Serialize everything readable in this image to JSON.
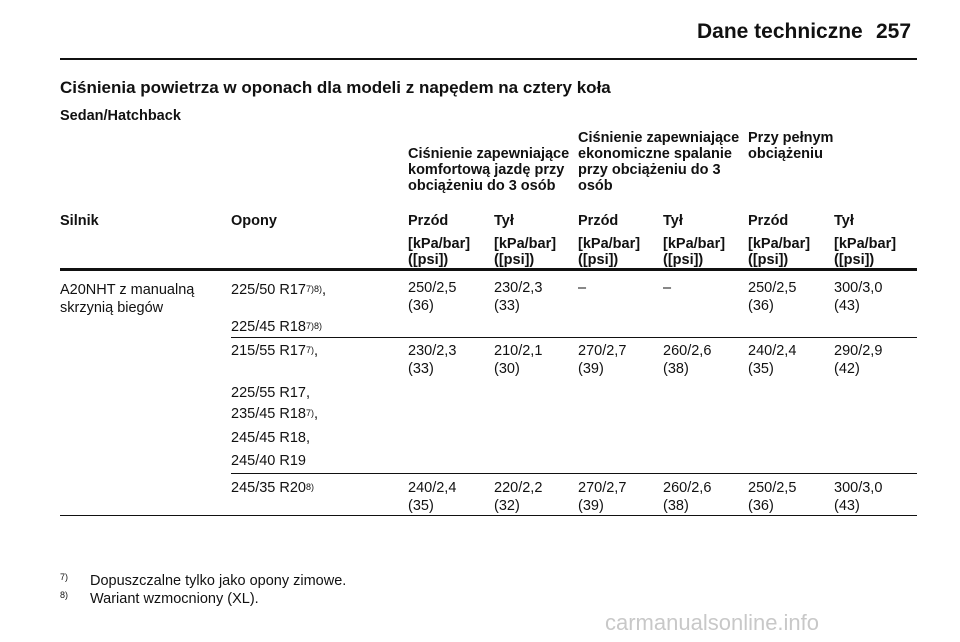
{
  "header": {
    "section": "Dane techniczne",
    "page": "257"
  },
  "title": "Ciśnienia powietrza w oponach dla modeli z napędem na cztery koła",
  "subtitle": "Sedan/Hatchback",
  "table": {
    "groups": [
      "Ciśnienie zapewniające komfortową jazdę przy obciążeniu do 3 osób",
      "Ciśnienie zapewniające ekonomiczne spalanie przy obciążeniu do 3 osób",
      "Przy pełnym obciążeniu"
    ],
    "columns": [
      "Silnik",
      "Opony",
      "Przód",
      "Tył",
      "Przód",
      "Tył",
      "Przód",
      "Tył"
    ],
    "unit": "[kPa/bar] ([psi])",
    "engine": "A20NHT z manualną skrzynią biegów",
    "rows": [
      {
        "tires": [
          [
            "225/50 R17",
            "7)8)",
            ","
          ],
          [
            "225/45 R18",
            "7)8)",
            ""
          ]
        ],
        "values": [
          "250/2,5 (36)",
          "230/2,3 (33)",
          "–",
          "–",
          "250/2,5 (36)",
          "300/3,0 (43)"
        ]
      },
      {
        "tires": [
          [
            "215/55 R17",
            "7)",
            ","
          ],
          [
            "225/55 R17,",
            "",
            ""
          ],
          [
            "235/45 R18",
            "7)",
            ","
          ],
          [
            "245/45 R18,",
            "",
            ""
          ],
          [
            "245/40 R19",
            "",
            ""
          ]
        ],
        "values": [
          "230/2,3 (33)",
          "210/2,1 (30)",
          "270/2,7 (39)",
          "260/2,6 (38)",
          "240/2,4 (35)",
          "290/2,9 (42)"
        ]
      },
      {
        "tires": [
          [
            "245/35 R20",
            "8)",
            ""
          ]
        ],
        "values": [
          "240/2,4 (35)",
          "220/2,2 (32)",
          "270/2,7 (39)",
          "260/2,6 (38)",
          "250/2,5 (36)",
          "300/3,0 (43)"
        ]
      }
    ]
  },
  "footnotes": [
    {
      "mark": "7)",
      "text": "Dopuszczalne tylko jako opony zimowe."
    },
    {
      "mark": "8)",
      "text": "Wariant wzmocniony (XL)."
    }
  ],
  "watermark": "carmanualsonline.info"
}
